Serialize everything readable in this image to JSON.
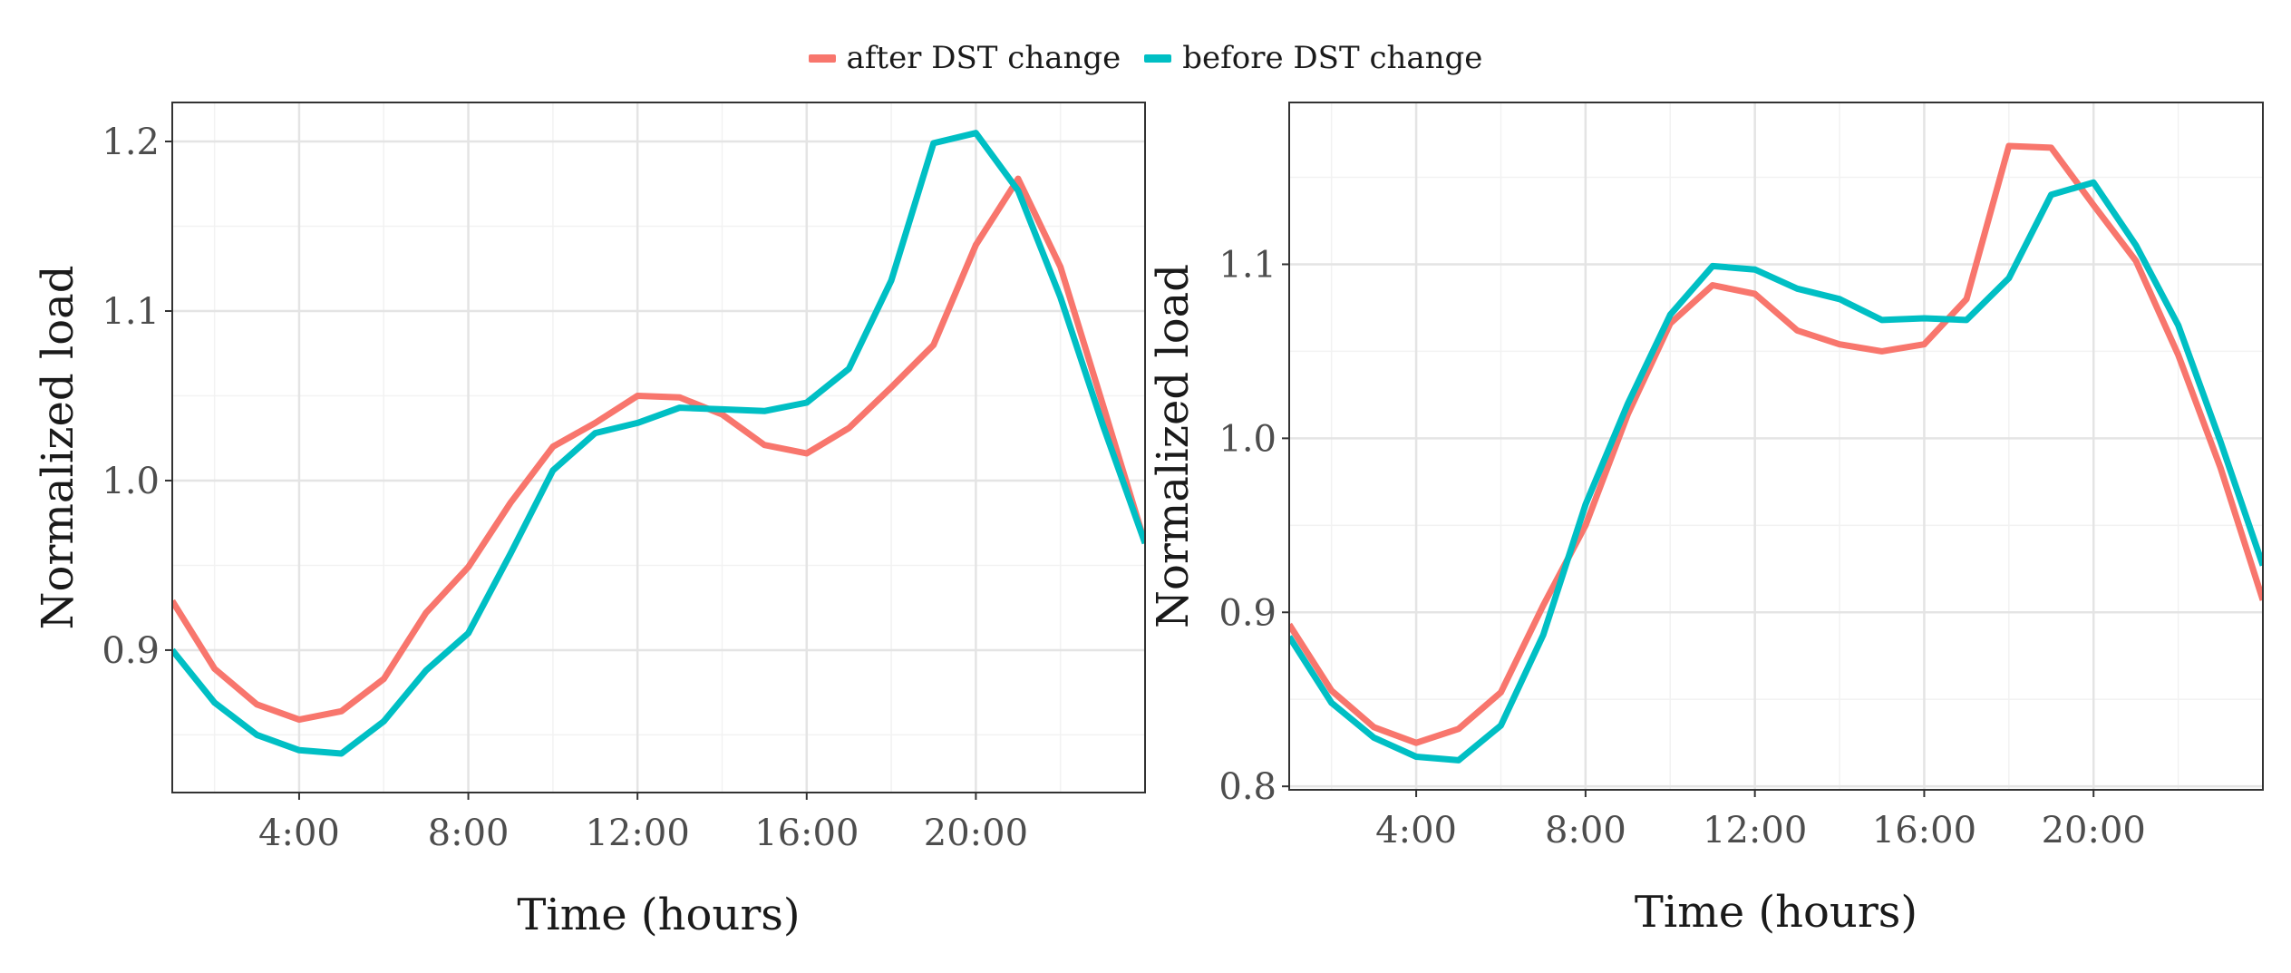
{
  "legend": {
    "after_label": "after DST change",
    "before_label": "before DST change"
  },
  "colors": {
    "after": "#F8766D",
    "before": "#00BFC4",
    "grid_major": "#E4E4E4",
    "grid_minor": "#F2F2F2",
    "axis_text": "#4D4D4D",
    "title_text": "#1A1A1A",
    "panel_border": "#333333"
  },
  "chart_data": [
    {
      "type": "line",
      "title": "",
      "xlabel": "Time (hours)",
      "ylabel": "Normalized load",
      "xlim": [
        1,
        24
      ],
      "ylim": [
        0.816,
        1.223
      ],
      "x_ticks": [
        4,
        8,
        12,
        16,
        20
      ],
      "x_tick_labels": [
        "4:00",
        "8:00",
        "12:00",
        "16:00",
        "20:00"
      ],
      "y_ticks": [
        0.9,
        1.0,
        1.1,
        1.2
      ],
      "y_tick_labels": [
        "0.9",
        "1.0",
        "1.1",
        "1.2"
      ],
      "x": [
        1,
        2,
        3,
        4,
        5,
        6,
        7,
        8,
        9,
        10,
        11,
        12,
        13,
        14,
        15,
        16,
        17,
        18,
        19,
        20,
        21,
        22,
        23,
        24
      ],
      "series": [
        {
          "name": "after DST change",
          "color_key": "after",
          "values": [
            0.929,
            0.889,
            0.868,
            0.859,
            0.864,
            0.883,
            0.922,
            0.949,
            0.987,
            1.02,
            1.034,
            1.05,
            1.049,
            1.039,
            1.021,
            1.016,
            1.031,
            1.055,
            1.08,
            1.139,
            1.178,
            1.126,
            1.045,
            0.963
          ]
        },
        {
          "name": "before DST change",
          "color_key": "before",
          "values": [
            0.9,
            0.869,
            0.85,
            0.841,
            0.839,
            0.858,
            0.888,
            0.91,
            0.957,
            1.006,
            1.028,
            1.034,
            1.043,
            1.042,
            1.041,
            1.046,
            1.066,
            1.118,
            1.199,
            1.205,
            1.171,
            1.108,
            1.033,
            0.963
          ]
        }
      ]
    },
    {
      "type": "line",
      "title": "",
      "xlabel": "Time (hours)",
      "ylabel": "Normalized load",
      "xlim": [
        1,
        24
      ],
      "ylim": [
        0.798,
        1.193
      ],
      "x_ticks": [
        4,
        8,
        12,
        16,
        20
      ],
      "x_tick_labels": [
        "4:00",
        "8:00",
        "12:00",
        "16:00",
        "20:00"
      ],
      "y_ticks": [
        0.8,
        0.9,
        1.0,
        1.1
      ],
      "y_tick_labels": [
        "0.8",
        "0.9",
        "1.0",
        "1.1"
      ],
      "x": [
        1,
        2,
        3,
        4,
        5,
        6,
        7,
        8,
        9,
        10,
        11,
        12,
        13,
        14,
        15,
        16,
        17,
        18,
        19,
        20,
        21,
        22,
        23,
        24
      ],
      "series": [
        {
          "name": "after DST change",
          "color_key": "after",
          "values": [
            0.893,
            0.855,
            0.834,
            0.825,
            0.833,
            0.854,
            0.904,
            0.95,
            1.014,
            1.066,
            1.088,
            1.083,
            1.062,
            1.054,
            1.05,
            1.054,
            1.08,
            1.168,
            1.167,
            1.134,
            1.102,
            1.048,
            0.983,
            0.907
          ]
        },
        {
          "name": "before DST change",
          "color_key": "before",
          "values": [
            0.886,
            0.848,
            0.828,
            0.817,
            0.815,
            0.835,
            0.887,
            0.962,
            1.02,
            1.071,
            1.099,
            1.097,
            1.086,
            1.08,
            1.068,
            1.069,
            1.068,
            1.092,
            1.14,
            1.147,
            1.111,
            1.065,
            0.998,
            0.927
          ]
        }
      ]
    }
  ]
}
